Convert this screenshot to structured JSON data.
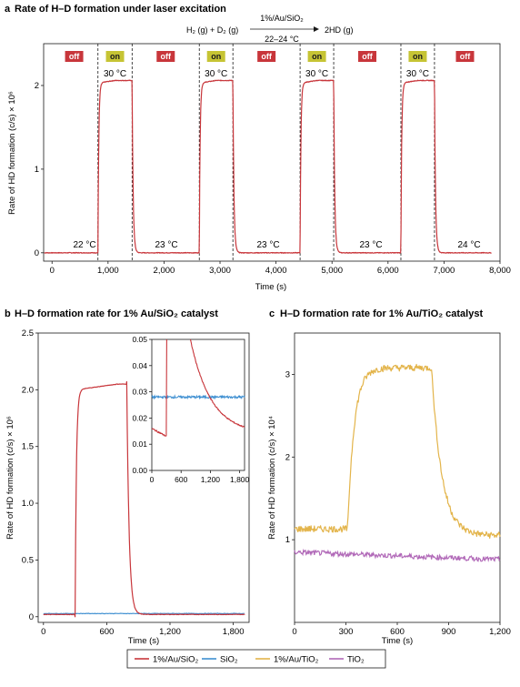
{
  "panel_a": {
    "letter": "a",
    "title": "Rate of H–D formation under laser excitation",
    "reaction": {
      "reactants": "H₂ (g) + D₂ (g)",
      "catalyst": "1%/Au/SiO₂",
      "condition": "22–24 °C",
      "product": "2HD (g)"
    },
    "temp_labels": [
      "22 °C",
      "23 °C",
      "23 °C",
      "23 °C",
      "24 °C"
    ],
    "on_temp_label": "30 °C",
    "on_badge": "on",
    "off_badge": "off"
  },
  "panel_b": {
    "letter": "b",
    "title": "H–D formation rate for 1% Au/SiO₂ catalyst"
  },
  "panel_c": {
    "letter": "c",
    "title": "H–D formation rate for 1% Au/TiO₂ catalyst"
  },
  "legend": {
    "items": [
      {
        "label": "1%/Au/SiO₂",
        "color": "#c8363b"
      },
      {
        "label": "SiO₂",
        "color": "#3e8fd1"
      },
      {
        "label": "1%/Au/TiO₂",
        "color": "#e3b44a"
      },
      {
        "label": "TiO₂",
        "color": "#b169b8"
      }
    ]
  },
  "colors": {
    "au_sio2": "#c8363b",
    "sio2": "#3e8fd1",
    "au_tio2": "#e3b44a",
    "tio2": "#b169b8",
    "on_badge": "#c6c434",
    "off_badge": "#c8363b"
  },
  "chart_data": [
    {
      "id": "a",
      "type": "line",
      "title": "Rate of H–D formation under laser excitation",
      "xlabel": "Time (s)",
      "ylabel": "Rate of HD formation (c/s) × 10⁶",
      "xlim": [
        -150,
        8000
      ],
      "ylim": [
        -0.1,
        2.5
      ],
      "xticks": [
        0,
        1000,
        2000,
        3000,
        4000,
        5000,
        6000,
        7000,
        8000
      ],
      "xtick_labels": [
        "0",
        "1,000",
        "2,000",
        "3,000",
        "4,000",
        "5,000",
        "6,000",
        "7,000",
        "8,000"
      ],
      "yticks": [
        0,
        1,
        2
      ],
      "ytick_labels": [
        "0",
        "1",
        "2"
      ],
      "laser_on_intervals": [
        [
          820,
          1430
        ],
        [
          2630,
          3230
        ],
        [
          4430,
          5030
        ],
        [
          6230,
          6830
        ]
      ],
      "series": [
        {
          "name": "1%/Au/SiO₂",
          "baseline": 0.0,
          "plateau": 2.06
        }
      ]
    },
    {
      "id": "b",
      "type": "line",
      "title": "H–D formation rate for 1% Au/SiO₂ catalyst",
      "xlabel": "Time (s)",
      "ylabel": "Rate of HD formation (c/s) × 10⁶",
      "xlim": [
        -50,
        1950
      ],
      "ylim": [
        -0.05,
        2.5
      ],
      "xticks": [
        0,
        600,
        1200,
        1800
      ],
      "xtick_labels": [
        "0",
        "600",
        "1,200",
        "1,800"
      ],
      "yticks": [
        0,
        0.5,
        1.0,
        1.5,
        2.0,
        2.5
      ],
      "ytick_labels": [
        "0",
        "0.5",
        "1.0",
        "1.5",
        "2.0",
        "2.5"
      ],
      "laser_on_interval": [
        300,
        790
      ],
      "series": [
        {
          "name": "1%/Au/SiO₂",
          "baseline": 0.02,
          "plateau": 2.05
        },
        {
          "name": "SiO₂",
          "baseline": 0.028
        }
      ],
      "inset": {
        "xlim": [
          0,
          1900
        ],
        "ylim": [
          0,
          0.05
        ],
        "xticks": [
          0,
          600,
          1200,
          1800
        ],
        "xtick_labels": [
          "0",
          "600",
          "1,200",
          "1,800"
        ],
        "yticks": [
          0,
          0.01,
          0.02,
          0.03,
          0.04,
          0.05
        ],
        "ytick_labels": [
          "0.00",
          "0.01",
          "0.02",
          "0.03",
          "0.04",
          "0.05"
        ],
        "series": [
          {
            "name": "1%/Au/SiO₂",
            "pre_on_start": 0.016,
            "pre_on_end": 0.013,
            "decay_start": 0.05,
            "decay_end": 0.014
          },
          {
            "name": "SiO₂",
            "value": 0.028
          }
        ]
      }
    },
    {
      "id": "c",
      "type": "line",
      "title": "H–D formation rate for 1% Au/TiO₂ catalyst",
      "xlabel": "Time (s)",
      "ylabel": "Rate of HD formation (c/s) × 10⁴",
      "xlim": [
        0,
        1200
      ],
      "ylim": [
        0,
        3.5
      ],
      "xticks": [
        0,
        300,
        600,
        900,
        1200
      ],
      "xtick_labels": [
        "0",
        "300",
        "600",
        "900",
        "1,200"
      ],
      "yticks": [
        1,
        2,
        3
      ],
      "ytick_labels": [
        "1",
        "2",
        "3"
      ],
      "laser_on_interval": [
        310,
        800
      ],
      "series": [
        {
          "name": "1%/Au/TiO₂",
          "baseline": 1.13,
          "plateau": 3.08,
          "end_value": 1.05
        },
        {
          "name": "TiO₂",
          "start_value": 0.85,
          "end_value": 0.76
        }
      ]
    }
  ]
}
